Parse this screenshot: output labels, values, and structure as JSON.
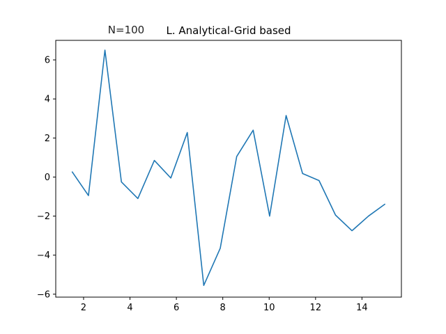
{
  "chart_data": {
    "type": "line",
    "title": "L. Analytical-Grid based",
    "annotation": "N=100",
    "xlabel": "",
    "ylabel": "",
    "xlim": [
      0.8,
      15.7
    ],
    "ylim": [
      -6.15,
      7.0
    ],
    "x_ticks": [
      2,
      4,
      6,
      8,
      10,
      12,
      14
    ],
    "y_ticks": [
      -6,
      -4,
      -2,
      0,
      2,
      4,
      6
    ],
    "grid": false,
    "legend": "none",
    "series": [
      {
        "color": "#1f77b4",
        "x": [
          1.5,
          2.21,
          2.92,
          3.63,
          4.34,
          5.05,
          5.76,
          6.47,
          7.18,
          7.89,
          8.6,
          9.31,
          10.02,
          10.73,
          11.44,
          12.15,
          12.86,
          13.57,
          14.28,
          15.0
        ],
        "y": [
          0.28,
          -0.95,
          6.5,
          -0.25,
          -1.1,
          0.85,
          -0.05,
          2.28,
          -5.55,
          -3.65,
          1.05,
          2.4,
          -2.0,
          3.15,
          0.18,
          -0.18,
          -1.95,
          -2.75,
          -2.0,
          -1.38
        ]
      }
    ]
  }
}
